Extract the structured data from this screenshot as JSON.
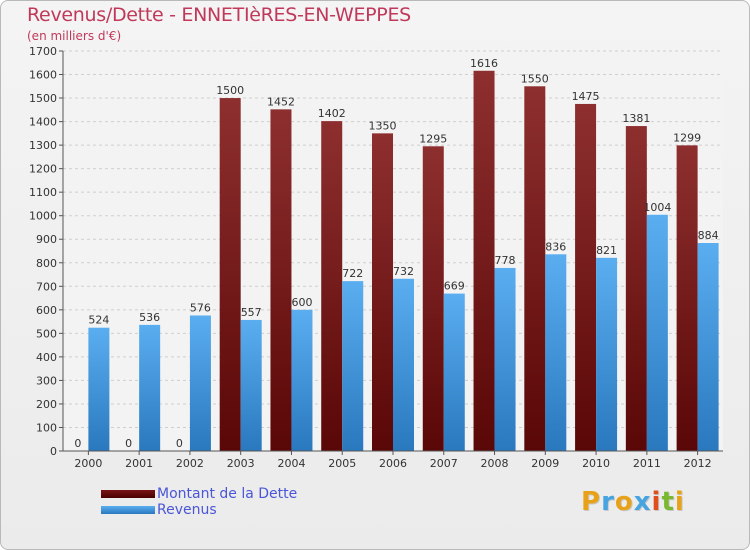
{
  "header": {
    "title": "Revenus/Dette - ENNETIèRES-EN-WEPPES",
    "subtitle": "(en milliers d'€)"
  },
  "legend": {
    "items": [
      {
        "label": "Montant de la Dette",
        "color": "#6b0d0d"
      },
      {
        "label": "Revenus",
        "color": "#3d98e0"
      }
    ]
  },
  "logo": {
    "text": "Proxiti",
    "colors": [
      "#e8a21a",
      "#46a5e0",
      "#e8a21a",
      "#46a5e0",
      "#e04f1b",
      "#7ab82f",
      "#e8a21a"
    ]
  },
  "chart_data": {
    "type": "bar",
    "categories": [
      "2000",
      "2001",
      "2002",
      "2003",
      "2004",
      "2005",
      "2006",
      "2007",
      "2008",
      "2009",
      "2010",
      "2011",
      "2012"
    ],
    "series": [
      {
        "name": "Montant de la Dette",
        "color": "#8b2b2b",
        "values": [
          0,
          0,
          0,
          1500,
          1452,
          1402,
          1350,
          1295,
          1616,
          1550,
          1475,
          1381,
          1299
        ]
      },
      {
        "name": "Revenus",
        "color": "#4ea3e4",
        "values": [
          524,
          536,
          576,
          557,
          600,
          722,
          732,
          669,
          778,
          836,
          821,
          1004,
          884
        ]
      }
    ],
    "ylim": [
      0,
      1700
    ],
    "yticks": [
      0,
      100,
      200,
      300,
      400,
      500,
      600,
      700,
      800,
      900,
      1000,
      1100,
      1200,
      1300,
      1400,
      1500,
      1600,
      1700
    ],
    "grid": true,
    "legend_position": "bottom-left"
  }
}
